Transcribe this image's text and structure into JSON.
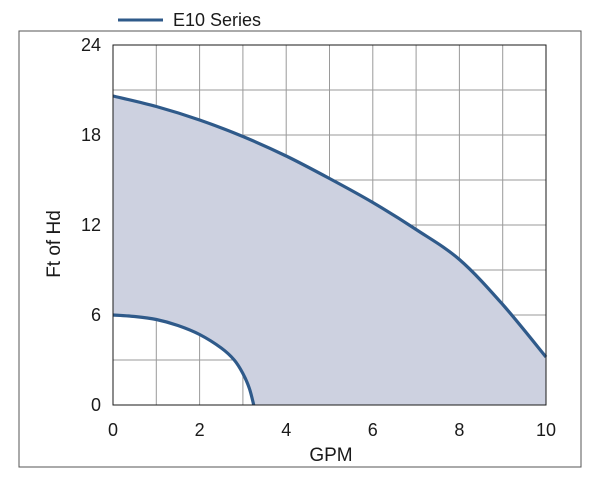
{
  "chart_data": {
    "type": "area",
    "xlabel": "GPM",
    "ylabel": "Ft of Hd",
    "xlim": [
      0,
      10
    ],
    "ylim": [
      0,
      24
    ],
    "x_ticks": [
      "0",
      "2",
      "4",
      "6",
      "8",
      "10"
    ],
    "y_ticks": [
      "0",
      "6",
      "12",
      "18",
      "24"
    ],
    "grid": true,
    "legend_placement": "top-left",
    "series": [
      {
        "name": "E10 Series",
        "color": "#2f5a8a",
        "fill": "#cdd1e0",
        "upper": {
          "x": [
            0,
            1,
            2,
            3,
            4,
            5,
            6,
            7,
            8,
            9,
            10
          ],
          "y": [
            20.6,
            19.9,
            19.0,
            17.9,
            16.6,
            15.1,
            13.5,
            11.7,
            9.7,
            6.7,
            3.2
          ]
        },
        "lower": {
          "x": [
            0,
            0.5,
            1,
            1.5,
            2,
            2.5,
            2.8,
            3.0,
            3.15,
            3.25
          ],
          "y": [
            6.0,
            5.9,
            5.7,
            5.3,
            4.7,
            3.8,
            3.0,
            2.1,
            1.1,
            0
          ]
        }
      }
    ]
  }
}
